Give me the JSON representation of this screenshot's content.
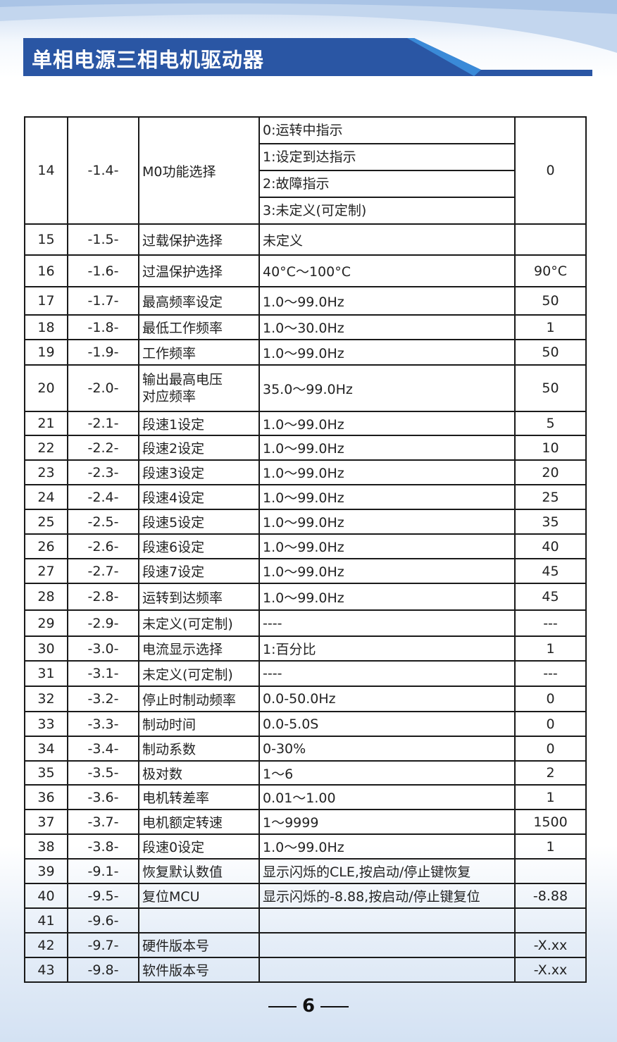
{
  "header": {
    "title": "单相电源三相电机驱动器",
    "accent": "#2a56a4"
  },
  "table": {
    "first": {
      "no": "14",
      "code": "-1.4-",
      "name": "M0功能选择",
      "options": [
        "0:运转中指示",
        "1:设定到达指示",
        "2:故障指示",
        "3:未定义(可定制)"
      ],
      "default": "0"
    },
    "rows": [
      {
        "no": "15",
        "code": "-1.5-",
        "name": "过载保护选择",
        "range": "未定义",
        "default": ""
      },
      {
        "no": "16",
        "code": "-1.6-",
        "name": "过温保护选择",
        "range": " 40°C～100°C",
        "default": "90°C"
      },
      {
        "no": "17",
        "code": "-1.7-",
        "name": "最高频率设定",
        "range": "1.0～99.0Hz",
        "default": "50"
      },
      {
        "no": "18",
        "code": "-1.8-",
        "name": "最低工作频率",
        "range": "1.0～30.0Hz",
        "default": "1"
      },
      {
        "no": "19",
        "code": "-1.9-",
        "name": "工作频率",
        "range": "1.0～99.0Hz",
        "default": "50"
      },
      {
        "no": "20",
        "code": "-2.0-",
        "name": "输出最高电压\n对应频率",
        "range": "35.0～99.0Hz",
        "default": "50"
      },
      {
        "no": "21",
        "code": "-2.1-",
        "name": "段速1设定",
        "range": "1.0～99.0Hz",
        "default": "5"
      },
      {
        "no": "22",
        "code": "-2.2-",
        "name": "段速2设定",
        "range": "1.0～99.0Hz",
        "default": "10"
      },
      {
        "no": "23",
        "code": "-2.3-",
        "name": "段速3设定",
        "range": "1.0～99.0Hz",
        "default": "20"
      },
      {
        "no": "24",
        "code": "-2.4-",
        "name": "段速4设定",
        "range": "1.0～99.0Hz",
        "default": "25"
      },
      {
        "no": "25",
        "code": "-2.5-",
        "name": "段速5设定",
        "range": "1.0～99.0Hz",
        "default": "35"
      },
      {
        "no": "26",
        "code": "-2.6-",
        "name": "段速6设定",
        "range": "1.0～99.0Hz",
        "default": "40"
      },
      {
        "no": "27",
        "code": "-2.7-",
        "name": "段速7设定",
        "range": "1.0～99.0Hz",
        "default": "45"
      },
      {
        "no": "28",
        "code": "-2.8-",
        "name": "运转到达频率",
        "range": "1.0～99.0Hz",
        "default": "45"
      },
      {
        "no": "29",
        "code": "-2.9-",
        "name": "未定义(可定制)",
        "range": "----",
        "default": "---"
      },
      {
        "no": "30",
        "code": "-3.0-",
        "name": "电流显示选择",
        "range": "1:百分比",
        "default": "1"
      },
      {
        "no": "31",
        "code": "-3.1-",
        "name": "未定义(可定制)",
        "range": "----",
        "default": "---"
      },
      {
        "no": "32",
        "code": "-3.2-",
        "name": "停止时制动频率",
        "range": "0.0-50.0Hz",
        "default": "0"
      },
      {
        "no": "33",
        "code": "-3.3-",
        "name": "制动时间",
        "range": "0.0-5.0S",
        "default": "0"
      },
      {
        "no": "34",
        "code": "-3.4-",
        "name": "制动系数",
        "range": "0-30%",
        "default": "0"
      },
      {
        "no": "35",
        "code": "-3.5-",
        "name": "极对数",
        "range": "1～6",
        "default": "2"
      },
      {
        "no": "36",
        "code": "-3.6-",
        "name": "电机转差率",
        "range": "0.01～1.00",
        "default": "1"
      },
      {
        "no": "37",
        "code": "-3.7-",
        "name": "电机额定转速",
        "range": "1～9999",
        "default": "1500"
      },
      {
        "no": "38",
        "code": "-3.8-",
        "name": "段速0设定",
        "range": "1.0～99.0Hz",
        "default": "1"
      },
      {
        "no": "39",
        "code": "-9.1-",
        "name": "恢复默认数值",
        "range": "显示闪烁的CLE,按启动/停止键恢复",
        "default": ""
      },
      {
        "no": "40",
        "code": "-9.5-",
        "name": "复位MCU",
        "range": "显示闪烁的-8.88,按启动/停止键复位",
        "default": "-8.88"
      },
      {
        "no": "41",
        "code": "-9.6-",
        "name": "",
        "range": "",
        "default": ""
      },
      {
        "no": "42",
        "code": "-9.7-",
        "name": "硬件版本号",
        "range": "",
        "default": "-X.xx"
      },
      {
        "no": "43",
        "code": "-9.8-",
        "name": "软件版本号",
        "range": "",
        "default": "-X.xx"
      }
    ]
  },
  "footer": {
    "page": "6"
  }
}
